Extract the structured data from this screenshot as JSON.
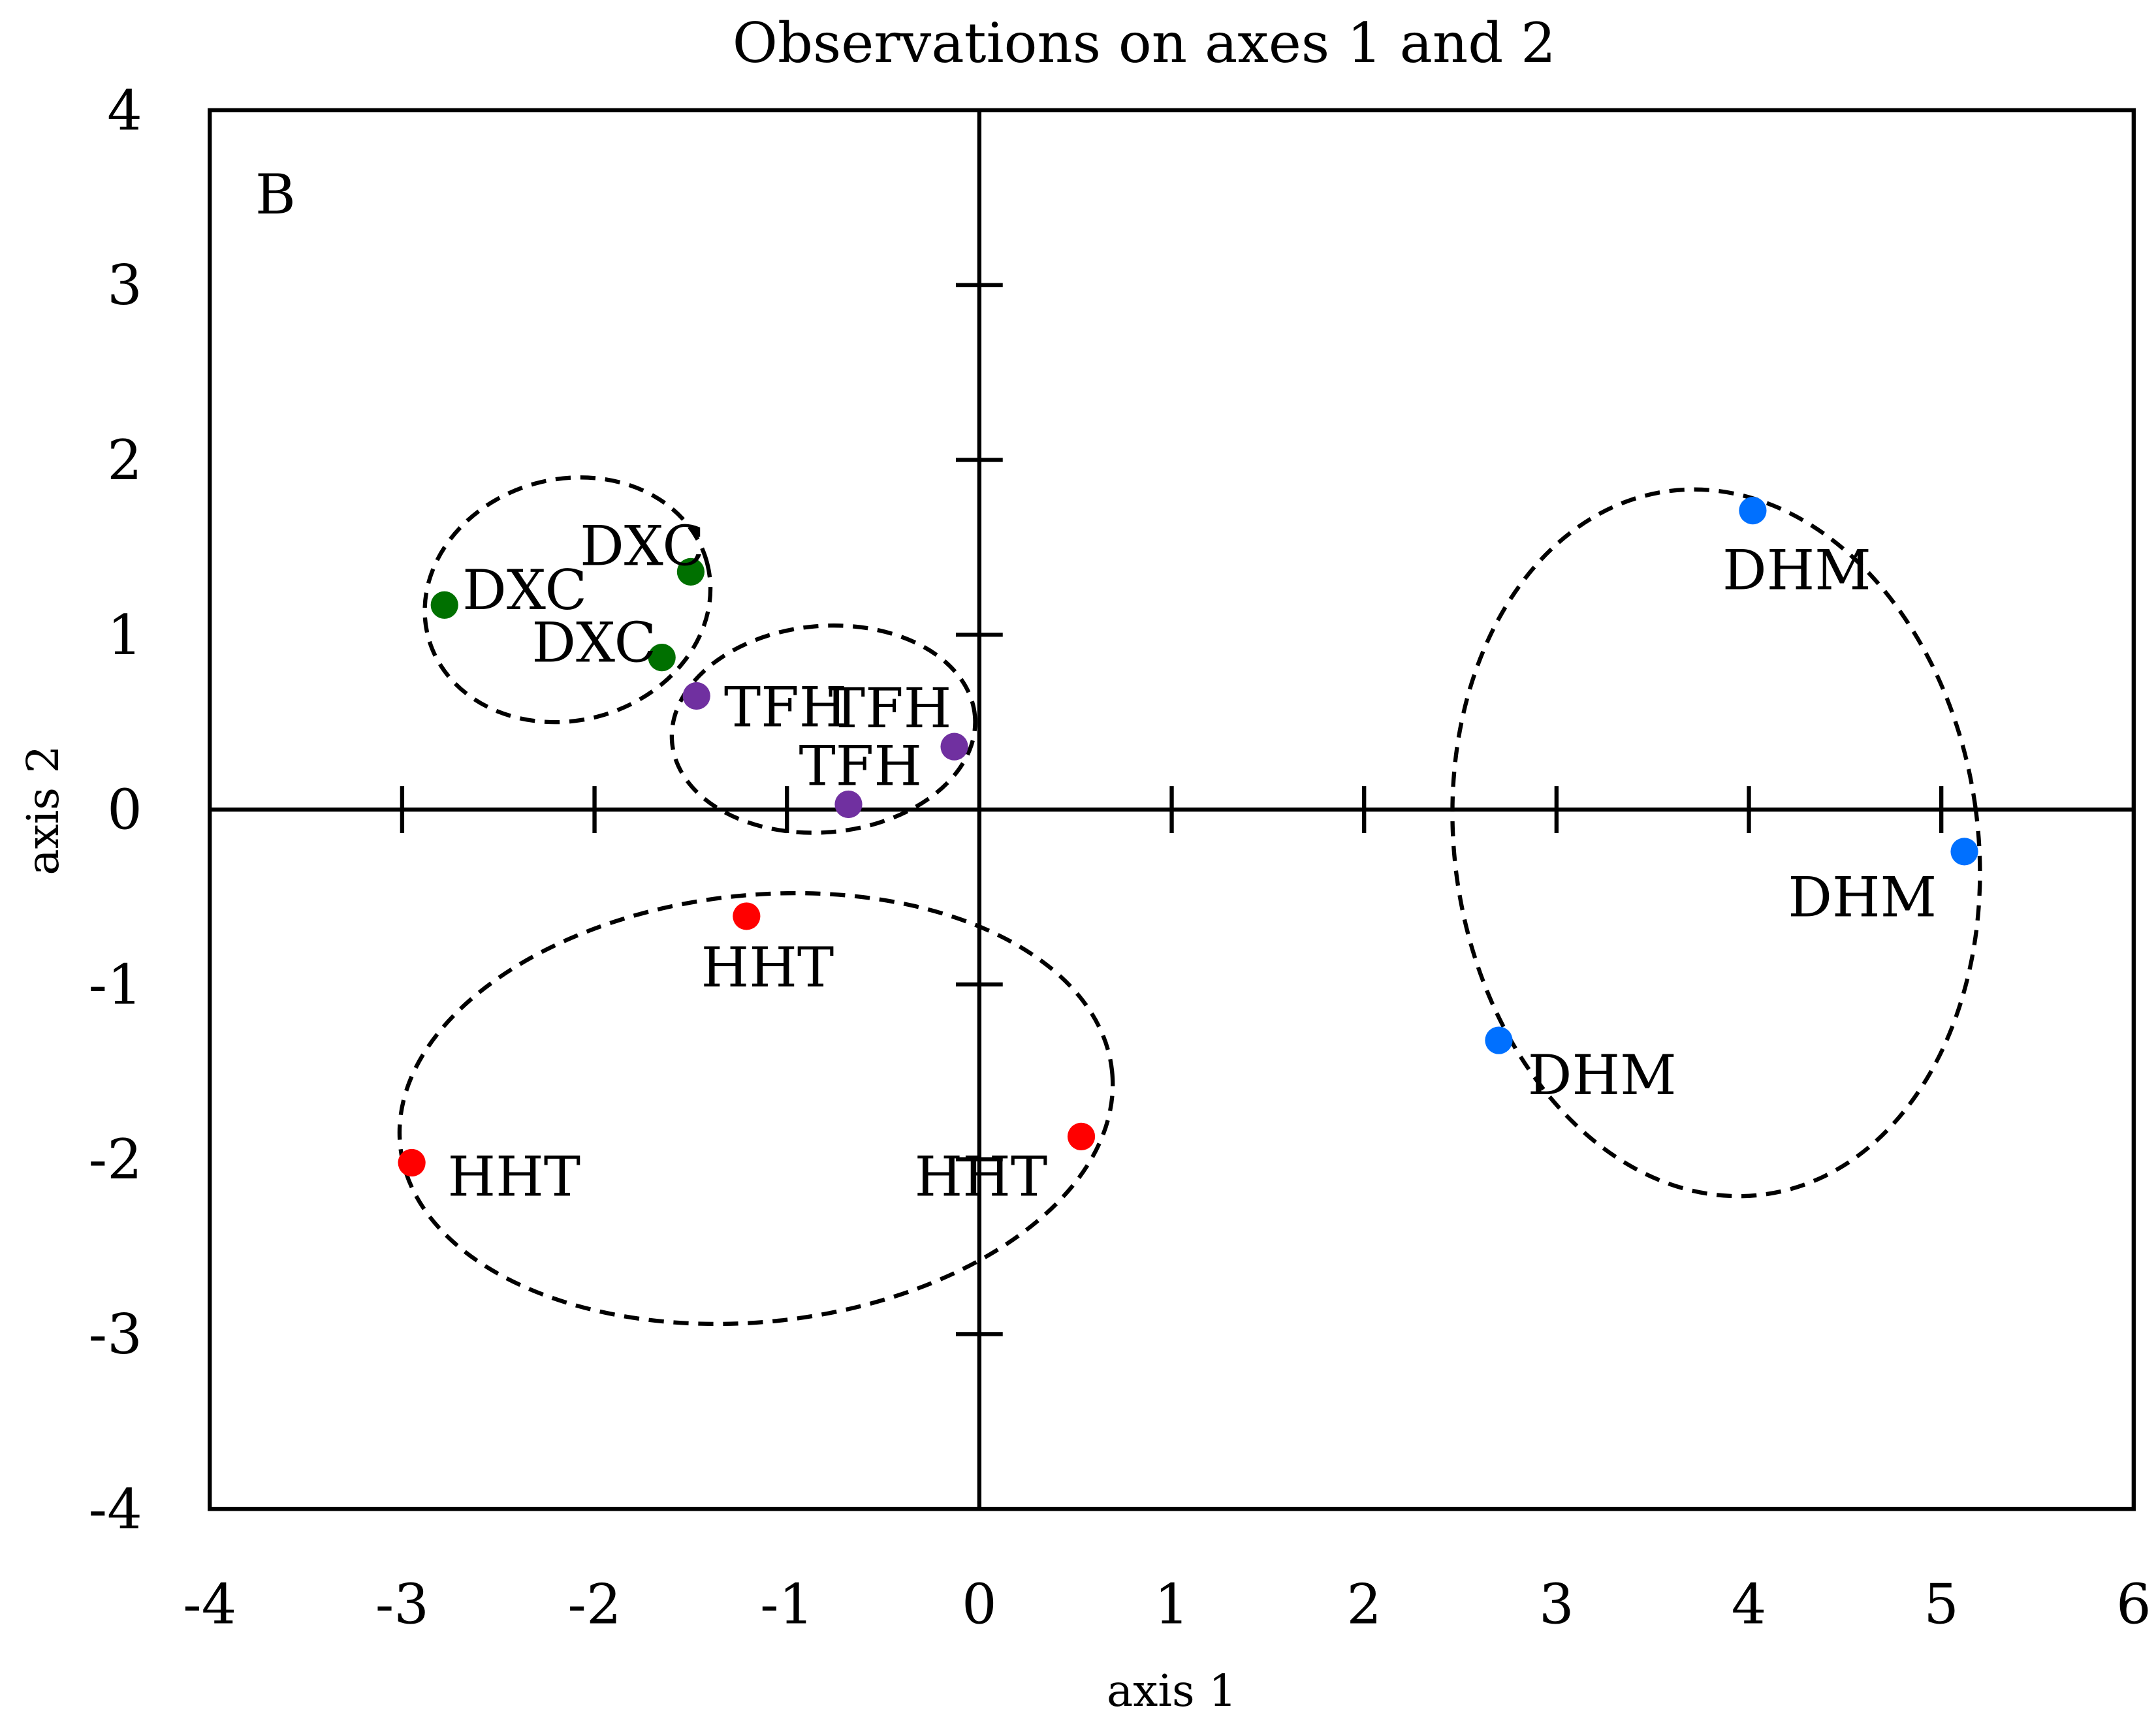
{
  "chart_data": {
    "type": "scatter",
    "title": "Observations on axes 1 and 2",
    "panel_label": "B",
    "xlabel": "axis 1",
    "ylabel": "axis 2",
    "xlim": [
      -4,
      6
    ],
    "ylim": [
      -4,
      4
    ],
    "xticks": [
      "-4",
      "-3",
      "-2",
      "-1",
      "0",
      "1",
      "2",
      "3",
      "4",
      "5",
      "6"
    ],
    "yticks": [
      "4",
      "3",
      "2",
      "1",
      "0",
      "-1",
      "-2",
      "-3",
      "-4"
    ],
    "grid": false,
    "legend": "none",
    "groups": [
      {
        "label": "DXC",
        "color": "#007000",
        "points": [
          [
            -2.78,
            1.17
          ],
          [
            -1.5,
            1.36
          ],
          [
            -1.65,
            0.87
          ]
        ]
      },
      {
        "label": "TFH",
        "color": "#7030A0",
        "points": [
          [
            -1.47,
            0.65
          ],
          [
            -0.13,
            0.36
          ],
          [
            -0.68,
            0.03
          ]
        ]
      },
      {
        "label": "HHT",
        "color": "#FF0000",
        "points": [
          [
            -1.21,
            -0.61
          ],
          [
            -2.95,
            -2.02
          ],
          [
            0.53,
            -1.87
          ]
        ]
      },
      {
        "label": "DHM",
        "color": "#0070FF",
        "points": [
          [
            4.02,
            1.71
          ],
          [
            5.12,
            -0.24
          ],
          [
            2.7,
            -1.32
          ]
        ]
      }
    ],
    "ellipses": [
      {
        "group": "DXC",
        "center": [
          -2.14,
          1.2
        ],
        "radii": [
          0.75,
          0.69
        ],
        "tilt_deg": -15
      },
      {
        "group": "TFH",
        "center": [
          -0.81,
          0.46
        ],
        "radii": [
          0.79,
          0.59
        ],
        "tilt_deg": -5
      },
      {
        "group": "HHT",
        "center": [
          -1.16,
          -1.71
        ],
        "radii": [
          1.86,
          1.22
        ],
        "tilt_deg": -6
      },
      {
        "group": "DHM",
        "center": [
          3.83,
          -0.19
        ],
        "radii": [
          1.36,
          2.03
        ],
        "tilt_deg": -8
      }
    ]
  }
}
